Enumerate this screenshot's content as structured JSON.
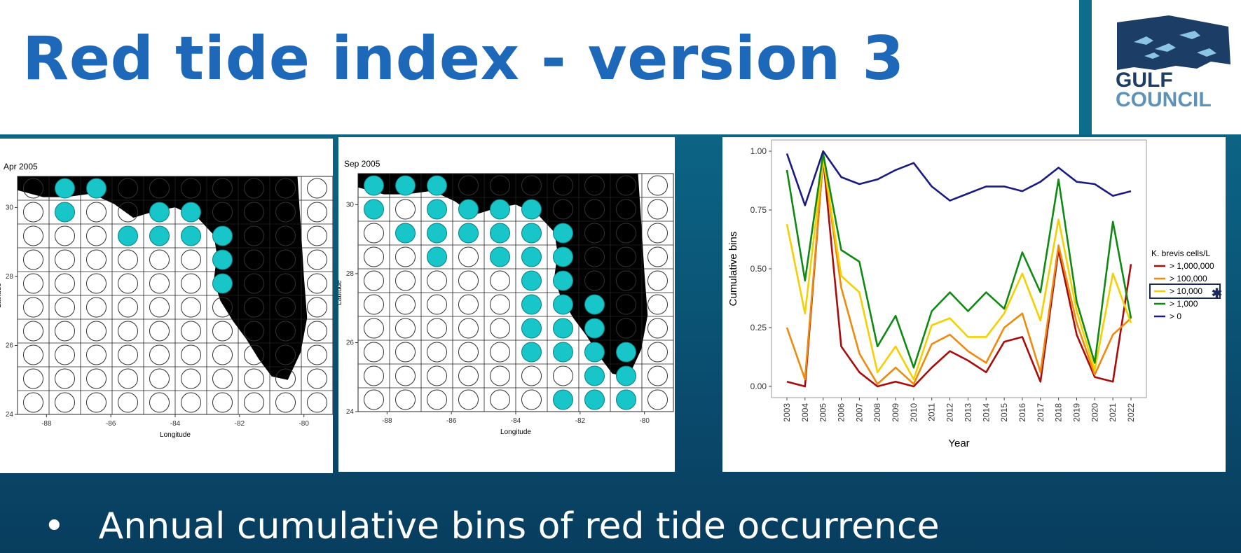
{
  "slide": {
    "title": "Red tide index - version 3",
    "bullet": "Annual cumulative bins of red tide occurrence",
    "logo_line1": "GULF",
    "logo_line2": "COUNCIL"
  },
  "colors": {
    "title": "#1d68b8",
    "bin_filled": "#18c5c8",
    "land": "#000000",
    "background": "#0b5f80"
  },
  "chart_data": [
    {
      "type": "map",
      "title": "Apr 2005",
      "xlabel": "Longitude",
      "ylabel": "Latitude",
      "xticks": [
        "-88",
        "-86",
        "-84",
        "-82",
        "-80"
      ],
      "yticks": [
        "30",
        "28",
        "26",
        "24"
      ],
      "filled_bins": [
        [
          1,
          0
        ],
        [
          2,
          0
        ],
        [
          1,
          1
        ],
        [
          4,
          1
        ],
        [
          5,
          1
        ],
        [
          3,
          2
        ],
        [
          4,
          2
        ],
        [
          5,
          2
        ],
        [
          6,
          2
        ],
        [
          6,
          3
        ],
        [
          6,
          4
        ]
      ]
    },
    {
      "type": "map",
      "title": "Sep 2005",
      "xlabel": "Longitude",
      "ylabel": "Latitude",
      "xticks": [
        "-88",
        "-86",
        "-84",
        "-82",
        "-80"
      ],
      "yticks": [
        "30",
        "28",
        "26",
        "24"
      ],
      "filled_bins": [
        [
          0,
          0
        ],
        [
          1,
          0
        ],
        [
          2,
          0
        ],
        [
          0,
          1
        ],
        [
          2,
          1
        ],
        [
          3,
          1
        ],
        [
          4,
          1
        ],
        [
          5,
          1
        ],
        [
          1,
          2
        ],
        [
          2,
          2
        ],
        [
          3,
          2
        ],
        [
          4,
          2
        ],
        [
          5,
          2
        ],
        [
          6,
          2
        ],
        [
          2,
          3
        ],
        [
          4,
          3
        ],
        [
          5,
          3
        ],
        [
          6,
          3
        ],
        [
          5,
          4
        ],
        [
          6,
          4
        ],
        [
          5,
          5
        ],
        [
          6,
          5
        ],
        [
          7,
          5
        ],
        [
          5,
          6
        ],
        [
          6,
          6
        ],
        [
          7,
          6
        ],
        [
          5,
          7
        ],
        [
          6,
          7
        ],
        [
          7,
          7
        ],
        [
          8,
          7
        ],
        [
          7,
          8
        ],
        [
          8,
          8
        ],
        [
          6,
          9
        ],
        [
          7,
          9
        ],
        [
          8,
          9
        ]
      ]
    },
    {
      "type": "line",
      "xlabel": "Year",
      "ylabel": "Cumulative bins",
      "ylim": [
        0,
        1
      ],
      "yticks": [
        "0.00",
        "0.25",
        "0.50",
        "0.75",
        "1.00"
      ],
      "x": [
        "2003",
        "2004",
        "2005",
        "2006",
        "2007",
        "2008",
        "2009",
        "2010",
        "2011",
        "2012",
        "2013",
        "2014",
        "2015",
        "2016",
        "2017",
        "2018",
        "2019",
        "2020",
        "2021",
        "2022"
      ],
      "legend_title": "K. brevis cells/L",
      "legend_position": "right",
      "highlighted_series": "> 10,000",
      "highlight_marker": "✱",
      "series": [
        {
          "name": "> 1,000,000",
          "color": "#a80c0c",
          "values": [
            0.02,
            0.0,
            0.97,
            0.17,
            0.06,
            0.0,
            0.02,
            0.0,
            0.08,
            0.15,
            0.11,
            0.06,
            0.19,
            0.21,
            0.02,
            0.58,
            0.22,
            0.04,
            0.02,
            0.52
          ]
        },
        {
          "name": "> 100,000",
          "color": "#ee8a0c",
          "values": [
            0.25,
            0.03,
            0.97,
            0.42,
            0.14,
            0.01,
            0.08,
            0.01,
            0.18,
            0.22,
            0.15,
            0.1,
            0.25,
            0.31,
            0.06,
            0.6,
            0.27,
            0.05,
            0.22,
            0.29
          ]
        },
        {
          "name": "> 10,000",
          "color": "#f5d000",
          "values": [
            0.69,
            0.31,
            0.97,
            0.47,
            0.4,
            0.06,
            0.17,
            0.03,
            0.26,
            0.29,
            0.21,
            0.21,
            0.31,
            0.48,
            0.28,
            0.71,
            0.32,
            0.07,
            0.48,
            0.27
          ]
        },
        {
          "name": "> 1,000",
          "color": "#0e8a12",
          "values": [
            0.92,
            0.45,
            0.99,
            0.58,
            0.53,
            0.17,
            0.3,
            0.08,
            0.32,
            0.4,
            0.32,
            0.4,
            0.33,
            0.57,
            0.4,
            0.88,
            0.36,
            0.1,
            0.7,
            0.29
          ]
        },
        {
          "name": "> 0",
          "color": "#1a1a82",
          "values": [
            0.99,
            0.77,
            1.0,
            0.89,
            0.86,
            0.88,
            0.92,
            0.95,
            0.85,
            0.79,
            0.82,
            0.85,
            0.85,
            0.83,
            0.87,
            0.93,
            0.87,
            0.86,
            0.81,
            0.83
          ]
        }
      ]
    }
  ]
}
